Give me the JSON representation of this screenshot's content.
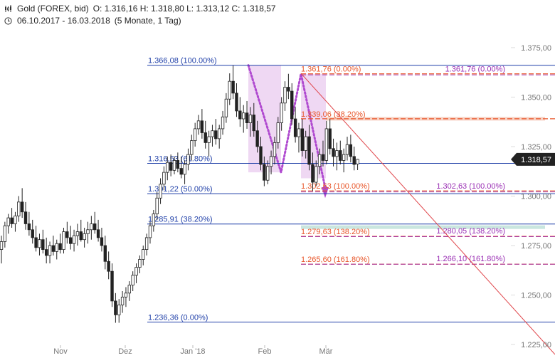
{
  "header": {
    "title_line": "Gold (FOREX, bid)",
    "ohlc_line": "O: 1.316,16  H: 1.318,80  L: 1.313,12  C: 1.318,57",
    "range_line": "06.10.2017 - 16.03.2018",
    "period_line": "(5 Monate, 1 Tag)",
    "candle_icon": "candlestick-icon",
    "clock_icon": "clock-icon"
  },
  "colors": {
    "up": "#ffffff",
    "down": "#222222",
    "blue_fib": "#1f3fa8",
    "orange_fib": "#e8562a",
    "purple_fib": "#9a2fb4",
    "trendline": "#e0474c",
    "pattern_fill": "#efd8f3",
    "pattern_line": "#b04ad0"
  },
  "chart_data": {
    "type": "candlestick",
    "yaxis": {
      "ylim": [
        1220,
        1380
      ],
      "ticks": [
        1225,
        1250,
        1275,
        1300,
        1325,
        1350,
        1375
      ],
      "tick_labels": [
        "1.225,00",
        "1.250,00",
        "1.275,00",
        "1.300,00",
        "1.325,00",
        "1.350,00",
        "1.375,00"
      ],
      "last_price_label": "1.318,57",
      "last_price": 1318.57
    },
    "xaxis": {
      "labels": [
        "Nov",
        "Dez",
        "Jan '18",
        "Feb",
        "Mär"
      ]
    },
    "fib_levels_blue": [
      {
        "label": "1.366,08 (100.00%)",
        "value": 1366.08
      },
      {
        "label": "1.316,53 (61.80%)",
        "value": 1316.53
      },
      {
        "label": "1.301,22 (50.00%)",
        "value": 1301.22
      },
      {
        "label": "1.285,91 (38.20%)",
        "value": 1285.91
      },
      {
        "label": "1.236,36 (0.00%)",
        "value": 1236.36
      }
    ],
    "fib_levels_orange": [
      {
        "label": "1.361,76 (0.00%)",
        "value": 1361.76
      },
      {
        "label": "1.339,06 (38.20%)",
        "value": 1339.06
      },
      {
        "label": "1.302,63 (100.00%)",
        "value": 1302.63
      },
      {
        "label": "1.279,63 (138.20%)",
        "value": 1279.63
      },
      {
        "label": "1.265,60 (161.80%)",
        "value": 1265.6
      }
    ],
    "fib_levels_purple": [
      {
        "label": "1.361,76 (0.00%)",
        "value": 1361.76
      },
      {
        "label": "1.302,63 (100.00%)",
        "value": 1302.63
      },
      {
        "label": "1.280,05 (138.20%)",
        "value": 1280.05
      },
      {
        "label": "1.266,10 (161.80%)",
        "value": 1266.1
      }
    ],
    "support_zones": [
      {
        "value": 1339.06,
        "color": "#f6c9b8"
      },
      {
        "value": 1284.3,
        "color": "#bfe2d9"
      }
    ],
    "candles": [
      {
        "o": 1273,
        "h": 1280,
        "l": 1266,
        "c": 1277
      },
      {
        "o": 1277,
        "h": 1287,
        "l": 1274,
        "c": 1285
      },
      {
        "o": 1285,
        "h": 1291,
        "l": 1281,
        "c": 1289
      },
      {
        "o": 1289,
        "h": 1294,
        "l": 1284,
        "c": 1286
      },
      {
        "o": 1286,
        "h": 1292,
        "l": 1282,
        "c": 1290
      },
      {
        "o": 1290,
        "h": 1300,
        "l": 1287,
        "c": 1297
      },
      {
        "o": 1297,
        "h": 1304,
        "l": 1289,
        "c": 1292
      },
      {
        "o": 1292,
        "h": 1297,
        "l": 1283,
        "c": 1286
      },
      {
        "o": 1286,
        "h": 1292,
        "l": 1280,
        "c": 1283
      },
      {
        "o": 1283,
        "h": 1288,
        "l": 1276,
        "c": 1279
      },
      {
        "o": 1279,
        "h": 1285,
        "l": 1272,
        "c": 1274
      },
      {
        "o": 1274,
        "h": 1281,
        "l": 1270,
        "c": 1278
      },
      {
        "o": 1278,
        "h": 1283,
        "l": 1271,
        "c": 1273
      },
      {
        "o": 1273,
        "h": 1279,
        "l": 1266,
        "c": 1270
      },
      {
        "o": 1270,
        "h": 1277,
        "l": 1266,
        "c": 1275
      },
      {
        "o": 1275,
        "h": 1280,
        "l": 1270,
        "c": 1272
      },
      {
        "o": 1272,
        "h": 1278,
        "l": 1268,
        "c": 1276
      },
      {
        "o": 1276,
        "h": 1281,
        "l": 1271,
        "c": 1273
      },
      {
        "o": 1273,
        "h": 1284,
        "l": 1271,
        "c": 1282
      },
      {
        "o": 1282,
        "h": 1287,
        "l": 1276,
        "c": 1279
      },
      {
        "o": 1279,
        "h": 1285,
        "l": 1273,
        "c": 1276
      },
      {
        "o": 1276,
        "h": 1283,
        "l": 1272,
        "c": 1280
      },
      {
        "o": 1280,
        "h": 1286,
        "l": 1275,
        "c": 1282
      },
      {
        "o": 1282,
        "h": 1288,
        "l": 1277,
        "c": 1278
      },
      {
        "o": 1278,
        "h": 1284,
        "l": 1274,
        "c": 1281
      },
      {
        "o": 1281,
        "h": 1287,
        "l": 1276,
        "c": 1283
      },
      {
        "o": 1283,
        "h": 1290,
        "l": 1278,
        "c": 1286
      },
      {
        "o": 1286,
        "h": 1292,
        "l": 1281,
        "c": 1283
      },
      {
        "o": 1283,
        "h": 1288,
        "l": 1277,
        "c": 1279
      },
      {
        "o": 1279,
        "h": 1284,
        "l": 1272,
        "c": 1275
      },
      {
        "o": 1275,
        "h": 1280,
        "l": 1263,
        "c": 1267
      },
      {
        "o": 1267,
        "h": 1272,
        "l": 1258,
        "c": 1262
      },
      {
        "o": 1262,
        "h": 1266,
        "l": 1244,
        "c": 1247
      },
      {
        "o": 1247,
        "h": 1251,
        "l": 1236,
        "c": 1240
      },
      {
        "o": 1240,
        "h": 1248,
        "l": 1236,
        "c": 1245
      },
      {
        "o": 1245,
        "h": 1252,
        "l": 1241,
        "c": 1249
      },
      {
        "o": 1249,
        "h": 1254,
        "l": 1244,
        "c": 1251
      },
      {
        "o": 1251,
        "h": 1257,
        "l": 1247,
        "c": 1255
      },
      {
        "o": 1255,
        "h": 1262,
        "l": 1252,
        "c": 1260
      },
      {
        "o": 1260,
        "h": 1266,
        "l": 1256,
        "c": 1264
      },
      {
        "o": 1264,
        "h": 1270,
        "l": 1261,
        "c": 1268
      },
      {
        "o": 1268,
        "h": 1275,
        "l": 1265,
        "c": 1273
      },
      {
        "o": 1273,
        "h": 1281,
        "l": 1270,
        "c": 1279
      },
      {
        "o": 1279,
        "h": 1287,
        "l": 1276,
        "c": 1285
      },
      {
        "o": 1285,
        "h": 1293,
        "l": 1282,
        "c": 1291
      },
      {
        "o": 1291,
        "h": 1302,
        "l": 1288,
        "c": 1299
      },
      {
        "o": 1299,
        "h": 1309,
        "l": 1296,
        "c": 1306
      },
      {
        "o": 1306,
        "h": 1315,
        "l": 1303,
        "c": 1312
      },
      {
        "o": 1312,
        "h": 1320,
        "l": 1308,
        "c": 1317
      },
      {
        "o": 1317,
        "h": 1321,
        "l": 1310,
        "c": 1313
      },
      {
        "o": 1313,
        "h": 1320,
        "l": 1311,
        "c": 1318
      },
      {
        "o": 1318,
        "h": 1322,
        "l": 1312,
        "c": 1314
      },
      {
        "o": 1314,
        "h": 1320,
        "l": 1309,
        "c": 1311
      },
      {
        "o": 1311,
        "h": 1318,
        "l": 1306,
        "c": 1316
      },
      {
        "o": 1316,
        "h": 1324,
        "l": 1313,
        "c": 1321
      },
      {
        "o": 1321,
        "h": 1331,
        "l": 1318,
        "c": 1328
      },
      {
        "o": 1328,
        "h": 1337,
        "l": 1325,
        "c": 1334
      },
      {
        "o": 1334,
        "h": 1341,
        "l": 1331,
        "c": 1338
      },
      {
        "o": 1338,
        "h": 1344,
        "l": 1329,
        "c": 1332
      },
      {
        "o": 1332,
        "h": 1338,
        "l": 1324,
        "c": 1327
      },
      {
        "o": 1327,
        "h": 1333,
        "l": 1320,
        "c": 1330
      },
      {
        "o": 1330,
        "h": 1336,
        "l": 1325,
        "c": 1333
      },
      {
        "o": 1333,
        "h": 1339,
        "l": 1326,
        "c": 1329
      },
      {
        "o": 1329,
        "h": 1336,
        "l": 1324,
        "c": 1334
      },
      {
        "o": 1334,
        "h": 1343,
        "l": 1331,
        "c": 1340
      },
      {
        "o": 1340,
        "h": 1352,
        "l": 1337,
        "c": 1349
      },
      {
        "o": 1349,
        "h": 1362,
        "l": 1346,
        "c": 1358
      },
      {
        "o": 1358,
        "h": 1366,
        "l": 1349,
        "c": 1352
      },
      {
        "o": 1352,
        "h": 1357,
        "l": 1340,
        "c": 1343
      },
      {
        "o": 1343,
        "h": 1350,
        "l": 1335,
        "c": 1339
      },
      {
        "o": 1339,
        "h": 1346,
        "l": 1332,
        "c": 1342
      },
      {
        "o": 1342,
        "h": 1348,
        "l": 1334,
        "c": 1337
      },
      {
        "o": 1337,
        "h": 1345,
        "l": 1330,
        "c": 1341
      },
      {
        "o": 1341,
        "h": 1347,
        "l": 1330,
        "c": 1333
      },
      {
        "o": 1333,
        "h": 1338,
        "l": 1322,
        "c": 1325
      },
      {
        "o": 1325,
        "h": 1330,
        "l": 1313,
        "c": 1316
      },
      {
        "o": 1316,
        "h": 1320,
        "l": 1305,
        "c": 1308
      },
      {
        "o": 1308,
        "h": 1318,
        "l": 1306,
        "c": 1315
      },
      {
        "o": 1315,
        "h": 1323,
        "l": 1311,
        "c": 1320
      },
      {
        "o": 1320,
        "h": 1330,
        "l": 1316,
        "c": 1327
      },
      {
        "o": 1327,
        "h": 1340,
        "l": 1324,
        "c": 1337
      },
      {
        "o": 1337,
        "h": 1350,
        "l": 1333,
        "c": 1347
      },
      {
        "o": 1347,
        "h": 1358,
        "l": 1343,
        "c": 1355
      },
      {
        "o": 1355,
        "h": 1361.76,
        "l": 1349,
        "c": 1353
      },
      {
        "o": 1353,
        "h": 1357,
        "l": 1336,
        "c": 1339
      },
      {
        "o": 1339,
        "h": 1345,
        "l": 1327,
        "c": 1330
      },
      {
        "o": 1330,
        "h": 1337,
        "l": 1322,
        "c": 1334
      },
      {
        "o": 1334,
        "h": 1339,
        "l": 1320,
        "c": 1323
      },
      {
        "o": 1323,
        "h": 1333,
        "l": 1319,
        "c": 1330
      },
      {
        "o": 1330,
        "h": 1336,
        "l": 1313,
        "c": 1316
      },
      {
        "o": 1316,
        "h": 1322,
        "l": 1302.63,
        "c": 1307
      },
      {
        "o": 1307,
        "h": 1318,
        "l": 1305,
        "c": 1315
      },
      {
        "o": 1315,
        "h": 1324,
        "l": 1311,
        "c": 1321
      },
      {
        "o": 1321,
        "h": 1328,
        "l": 1315,
        "c": 1318
      },
      {
        "o": 1318,
        "h": 1338,
        "l": 1316,
        "c": 1334
      },
      {
        "o": 1334,
        "h": 1339,
        "l": 1321,
        "c": 1324
      },
      {
        "o": 1324,
        "h": 1329,
        "l": 1315,
        "c": 1320
      },
      {
        "o": 1320,
        "h": 1327,
        "l": 1313,
        "c": 1323
      },
      {
        "o": 1323,
        "h": 1328,
        "l": 1316,
        "c": 1318
      },
      {
        "o": 1318,
        "h": 1324,
        "l": 1312,
        "c": 1321
      },
      {
        "o": 1321,
        "h": 1330,
        "l": 1318,
        "c": 1326
      },
      {
        "o": 1326,
        "h": 1331,
        "l": 1317,
        "c": 1320
      },
      {
        "o": 1320,
        "h": 1325,
        "l": 1313,
        "c": 1316
      },
      {
        "o": 1316.16,
        "h": 1318.8,
        "l": 1313.12,
        "c": 1318.57
      }
    ]
  }
}
